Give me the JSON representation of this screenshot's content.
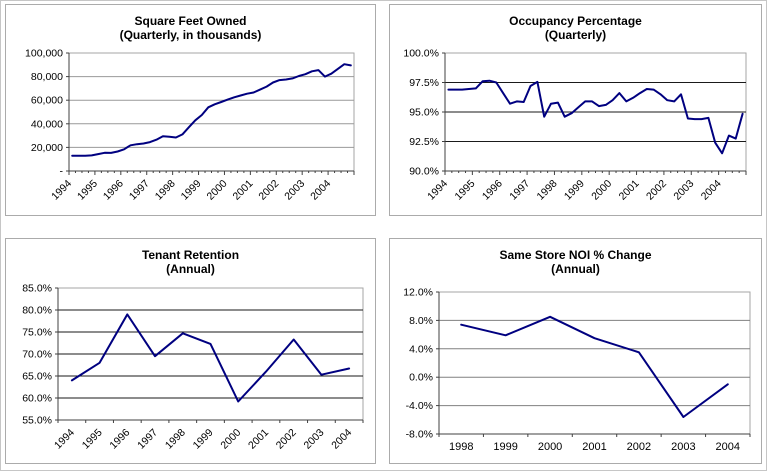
{
  "page": {
    "background": "#ffffff",
    "outer_border_color": "#c6c6c6",
    "panel_border_color": "#ababab",
    "line_color": "#000080"
  },
  "chart_data": [
    {
      "type": "line",
      "title": "Square Feet Owned",
      "subtitle": "(Quarterly, in thousands)",
      "frequency": "quarterly",
      "legend": "none",
      "grid": "horizontal",
      "x": {
        "style": "rotated",
        "labels": [
          "1994",
          "1995",
          "1996",
          "1997",
          "1998",
          "1999",
          "2000",
          "2001",
          "2002",
          "2003",
          "2004"
        ]
      },
      "y": {
        "min": 0,
        "max": 100000,
        "grid_color": "#999999",
        "ticks": [
          {
            "v": 100000,
            "label": "100,000"
          },
          {
            "v": 80000,
            "label": "80,000"
          },
          {
            "v": 60000,
            "label": "60,000"
          },
          {
            "v": 40000,
            "label": "40,000"
          },
          {
            "v": 20000,
            "label": "20,000"
          },
          {
            "v": 0,
            "label": "-"
          }
        ]
      },
      "series": [
        {
          "name": "Square Feet Owned",
          "color": "#000080",
          "values": [
            13000,
            13000,
            13000,
            13200,
            14300,
            15400,
            15300,
            16500,
            18400,
            21800,
            22700,
            23300,
            24500,
            26500,
            29500,
            29000,
            28400,
            31000,
            37000,
            43000,
            47500,
            54000,
            56500,
            58500,
            60500,
            62500,
            64000,
            65500,
            66500,
            69000,
            71500,
            75000,
            77000,
            77500,
            78500,
            80500,
            82000,
            84500,
            85500,
            80000,
            82500,
            86500,
            90500,
            89500
          ]
        }
      ]
    },
    {
      "type": "line",
      "title": "Occupancy Percentage",
      "subtitle": "(Quarterly)",
      "frequency": "quarterly",
      "legend": "none",
      "grid": "horizontal",
      "x": {
        "style": "rotated",
        "labels": [
          "1994",
          "1995",
          "1996",
          "1997",
          "1998",
          "1999",
          "2000",
          "2001",
          "2002",
          "2003",
          "2004"
        ]
      },
      "y": {
        "min": 90,
        "max": 100,
        "grid_color": "#1a1a1a",
        "ticks": [
          {
            "v": 100,
            "label": "100.0%"
          },
          {
            "v": 97.5,
            "label": "97.5%"
          },
          {
            "v": 95,
            "label": "95.0%"
          },
          {
            "v": 92.5,
            "label": "92.5%"
          },
          {
            "v": 90,
            "label": "90.0%"
          }
        ]
      },
      "series": [
        {
          "name": "Occupancy Percentage",
          "color": "#000080",
          "values": [
            96.9,
            96.9,
            96.9,
            96.95,
            97.0,
            97.6,
            97.65,
            97.5,
            96.6,
            95.7,
            95.9,
            95.85,
            97.2,
            97.55,
            94.6,
            95.7,
            95.8,
            94.6,
            94.9,
            95.4,
            95.9,
            95.9,
            95.5,
            95.6,
            96.0,
            96.6,
            95.9,
            96.2,
            96.6,
            96.95,
            96.9,
            96.5,
            96.0,
            95.9,
            96.5,
            94.45,
            94.4,
            94.4,
            94.5,
            92.4,
            91.5,
            93.0,
            92.75,
            94.85
          ]
        }
      ]
    },
    {
      "type": "line",
      "title": "Tenant Retention",
      "subtitle": "(Annual)",
      "frequency": "annual",
      "legend": "none",
      "grid": "horizontal",
      "x": {
        "style": "rotated",
        "labels": [
          "1994",
          "1995",
          "1996",
          "1997",
          "1998",
          "1999",
          "2000",
          "2001",
          "2002",
          "2003",
          "2004"
        ]
      },
      "y": {
        "min": 55,
        "max": 85,
        "grid_color": "#1a1a1a",
        "ticks": [
          {
            "v": 85,
            "label": "85.0%"
          },
          {
            "v": 80,
            "label": "80.0%"
          },
          {
            "v": 75,
            "label": "75.0%"
          },
          {
            "v": 70,
            "label": "70.0%"
          },
          {
            "v": 65,
            "label": "65.0%"
          },
          {
            "v": 60,
            "label": "60.0%"
          },
          {
            "v": 55,
            "label": "55.0%"
          }
        ]
      },
      "series": [
        {
          "name": "Tenant Retention",
          "color": "#000080",
          "values": [
            64.0,
            68.0,
            79.0,
            69.5,
            74.7,
            72.3,
            59.2,
            66.0,
            73.3,
            65.3,
            66.7
          ]
        }
      ]
    },
    {
      "type": "line",
      "title": "Same Store NOI % Change",
      "subtitle": "(Annual)",
      "frequency": "annual",
      "legend": "none",
      "grid": "horizontal",
      "x": {
        "style": "horizontal",
        "labels": [
          "1998",
          "1999",
          "2000",
          "2001",
          "2002",
          "2003",
          "2004"
        ]
      },
      "y": {
        "min": -8,
        "max": 12,
        "grid_color": "#808080",
        "ticks": [
          {
            "v": 12,
            "label": "12.0%"
          },
          {
            "v": 8,
            "label": "8.0%"
          },
          {
            "v": 4,
            "label": "4.0%"
          },
          {
            "v": 0,
            "label": "0.0%"
          },
          {
            "v": -4,
            "label": "-4.0%"
          },
          {
            "v": -8,
            "label": "-8.0%"
          }
        ]
      },
      "series": [
        {
          "name": "Same Store NOI % Change",
          "color": "#000080",
          "values": [
            7.4,
            5.9,
            8.5,
            5.5,
            3.5,
            -5.6,
            -1.0
          ]
        }
      ]
    }
  ]
}
